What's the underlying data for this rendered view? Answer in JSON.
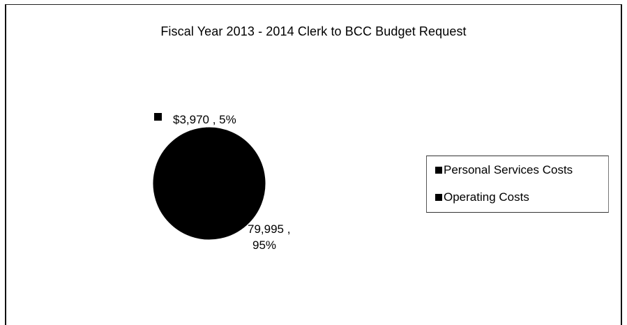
{
  "chart_data": {
    "type": "pie",
    "title": "Fiscal Year 2013 - 2014 Clerk to BCC Budget Request",
    "slices": [
      {
        "name": "Personal Services Costs",
        "value": 79995,
        "percent": 95,
        "label": "79,995 , 95%"
      },
      {
        "name": "Operating Costs",
        "value": 3970,
        "percent": 5,
        "label": "$3,970 , 5%"
      }
    ],
    "legend": {
      "placement": "right",
      "entries": [
        "Personal Services Costs",
        "Operating Costs"
      ]
    },
    "colors": {
      "slice": "#000000",
      "background": "#ffffff"
    }
  }
}
